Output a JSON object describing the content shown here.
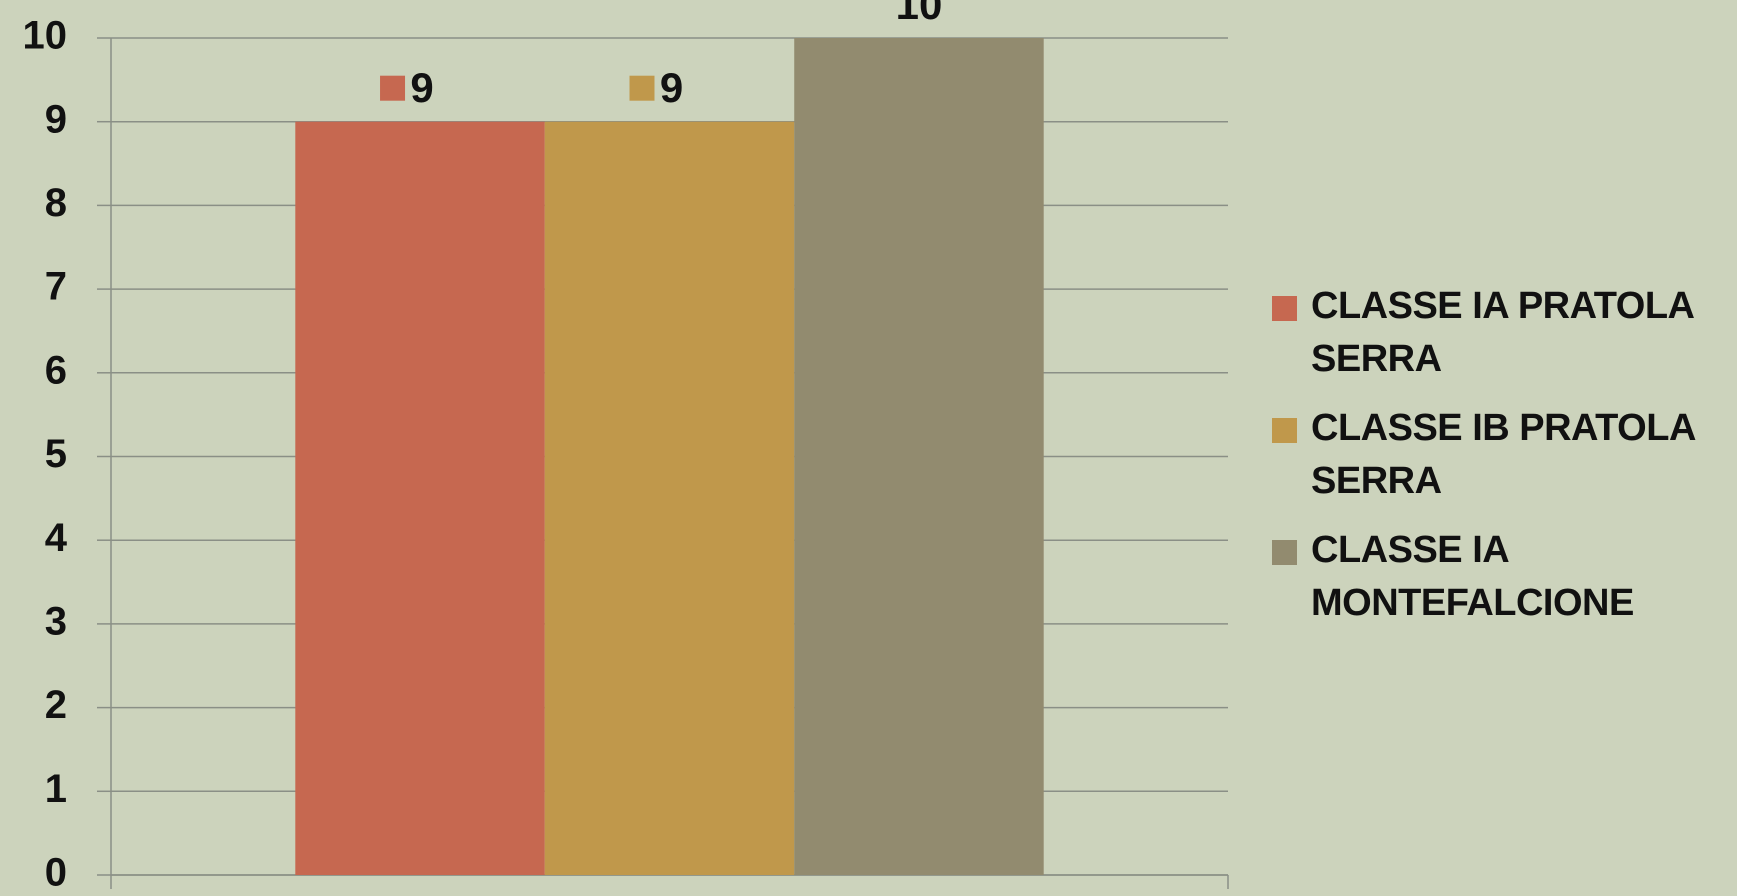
{
  "chart_data": {
    "type": "bar",
    "categories": [
      null
    ],
    "series": [
      {
        "name": "CLASSE IA PRATOLA SERRA",
        "color": "#c66850",
        "values": [
          9
        ]
      },
      {
        "name": "CLASSE IB PRATOLA SERRA",
        "color": "#c0984b",
        "values": [
          9
        ]
      },
      {
        "name": "CLASSE IA MONTEFALCIONE",
        "color": "#928b6f",
        "values": [
          10
        ]
      }
    ],
    "ylim": [
      0,
      10
    ],
    "yticks": [
      0,
      1,
      2,
      3,
      4,
      5,
      6,
      7,
      8,
      9,
      10
    ],
    "grid": true,
    "legend": "right",
    "data_labels": true,
    "legend_keys_in_labels": [
      true,
      true,
      false
    ]
  }
}
